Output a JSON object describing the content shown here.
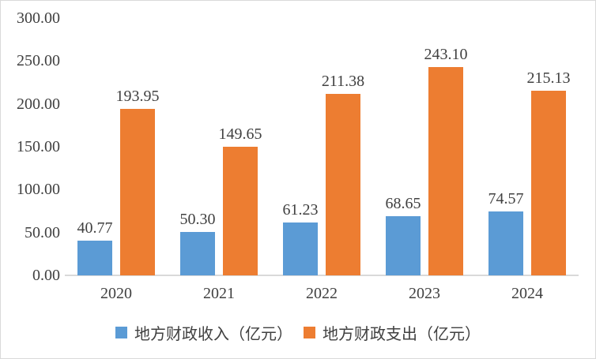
{
  "chart_data": {
    "type": "bar",
    "title": "",
    "xlabel": "",
    "ylabel": "",
    "categories": [
      "2020",
      "2021",
      "2022",
      "2023",
      "2024"
    ],
    "series": [
      {
        "name": "地方财政收入（亿元）",
        "color": "#5B9BD5",
        "values": [
          40.77,
          50.3,
          61.23,
          68.65,
          74.57
        ]
      },
      {
        "name": "地方财政支出（亿元）",
        "color": "#ED7D31",
        "values": [
          193.95,
          149.65,
          211.38,
          243.1,
          215.13
        ]
      }
    ],
    "ylim": [
      0,
      300
    ],
    "ytick_step": 50,
    "yticks": [
      "0.00",
      "50.00",
      "100.00",
      "150.00",
      "200.00",
      "250.00",
      "300.00"
    ],
    "grid": false,
    "value_labels": true,
    "value_label_decimals": 2,
    "legend_position": "bottom"
  },
  "colors": {
    "background": "#FFFFFF",
    "axis_line": "#D9D9D9",
    "border": "#D9D9D9",
    "text": "#404040"
  }
}
